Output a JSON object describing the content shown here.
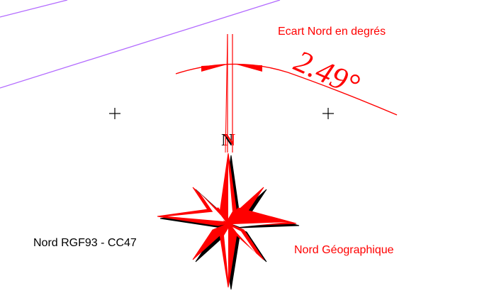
{
  "labels": {
    "ecart": "Ecart Nord en degrés",
    "angle": "2.49°",
    "north_letter": "N",
    "rgf93": "Nord RGF93 - CC47",
    "geographic": "Nord Géographique"
  },
  "colors": {
    "red": "#ff0000",
    "black": "#000000",
    "purple": "#b36bff"
  }
}
